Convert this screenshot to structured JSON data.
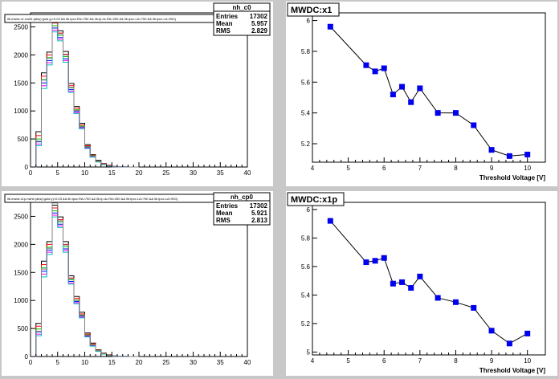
{
  "chart_data": [
    {
      "type": "histogram",
      "title": "",
      "selection": "llb.mwdc.x1.nwhit {abs(l.gold.y)<0.03 && llb.tpcc.RA>750 && llb.tp.dc.RA>250 && llb.tpcc.LA>750 && llb.tpcc.LA>900}",
      "stats": {
        "name": "nh_c0",
        "entries_label": "Entries",
        "entries": "17302",
        "mean_label": "Mean",
        "mean": "5.957",
        "rms_label": "RMS",
        "rms": "2.829"
      },
      "xlim": [
        0,
        40
      ],
      "ylim": [
        0,
        2750
      ],
      "xticks": [
        0,
        5,
        10,
        15,
        20,
        25,
        30,
        35,
        40
      ],
      "yticks": [
        0,
        500,
        1000,
        1500,
        2000,
        2500
      ],
      "bin_width": 1,
      "series": [
        {
          "color": "#000000",
          "values": [
            0,
            630,
            1680,
            2050,
            2620,
            2430,
            2060,
            1490,
            1080,
            780,
            400,
            220,
            120,
            60,
            30,
            10,
            4,
            2,
            0,
            0
          ]
        },
        {
          "color": "#ff0000",
          "values": [
            0,
            560,
            1620,
            2000,
            2570,
            2390,
            2010,
            1450,
            1050,
            750,
            380,
            210,
            110,
            55,
            25,
            8,
            3,
            1,
            0,
            0
          ]
        },
        {
          "color": "#00c000",
          "values": [
            0,
            500,
            1560,
            1950,
            2520,
            2350,
            1970,
            1410,
            1020,
            730,
            365,
            200,
            105,
            50,
            22,
            7,
            3,
            1,
            0,
            0
          ]
        },
        {
          "color": "#0000ff",
          "values": [
            0,
            450,
            1500,
            1900,
            2480,
            2310,
            1930,
            1380,
            990,
            710,
            350,
            190,
            100,
            48,
            20,
            6,
            2,
            1,
            0,
            0
          ]
        },
        {
          "color": "#ff00ff",
          "values": [
            0,
            410,
            1450,
            1860,
            2440,
            2280,
            1900,
            1350,
            970,
            690,
            340,
            180,
            95,
            45,
            18,
            5,
            2,
            1,
            0,
            0
          ]
        },
        {
          "color": "#00c0c0",
          "values": [
            0,
            380,
            1400,
            1820,
            2410,
            2250,
            1870,
            1330,
            950,
            680,
            330,
            175,
            90,
            42,
            16,
            5,
            2,
            1,
            0,
            0
          ]
        },
        {
          "color": "#808080",
          "values": [
            0,
            460,
            1550,
            1940,
            2700,
            2380,
            2000,
            1420,
            1010,
            720,
            360,
            195,
            102,
            49,
            21,
            6,
            2,
            1,
            0,
            0
          ]
        }
      ]
    },
    {
      "type": "scatter",
      "title": "MWDC:x1",
      "xlabel": "Threshold Voltage [V]",
      "xlim": [
        4,
        10.5
      ],
      "ylim": [
        5.08,
        6.05
      ],
      "xticks": [
        4,
        5,
        6,
        7,
        8,
        9,
        10
      ],
      "yticks": [
        5.2,
        5.4,
        5.6,
        5.8,
        6
      ],
      "x": [
        4.5,
        5.5,
        5.75,
        6.0,
        6.25,
        6.5,
        6.75,
        7.0,
        7.5,
        8.0,
        8.5,
        9.0,
        9.5,
        10.0
      ],
      "y": [
        5.96,
        5.71,
        5.67,
        5.69,
        5.52,
        5.57,
        5.47,
        5.56,
        5.4,
        5.4,
        5.32,
        5.16,
        5.12,
        5.13
      ]
    },
    {
      "type": "histogram",
      "title": "",
      "selection": "llb.mwdc.x1p.nwhit {abs(l.gold.y)<0.03 && llb.tpcc.RA>750 && llb.tp.dc.RA>250 && llb.tpcc.LA>750 && llb.tpcc.LA>900}",
      "stats": {
        "name": "nh_cp0",
        "entries_label": "Entries",
        "entries": "17302",
        "mean_label": "Mean",
        "mean": "5.921",
        "rms_label": "RMS",
        "rms": "2.813"
      },
      "xlim": [
        0,
        40
      ],
      "ylim": [
        0,
        2750
      ],
      "xticks": [
        0,
        5,
        10,
        15,
        20,
        25,
        30,
        35,
        40
      ],
      "yticks": [
        0,
        500,
        1000,
        1500,
        2000,
        2500
      ],
      "bin_width": 1,
      "series": [
        {
          "color": "#000000",
          "values": [
            0,
            590,
            1700,
            2050,
            2700,
            2490,
            2050,
            1440,
            1070,
            790,
            420,
            240,
            120,
            60,
            30,
            10,
            4,
            2,
            0,
            0
          ]
        },
        {
          "color": "#ff0000",
          "values": [
            0,
            540,
            1640,
            2000,
            2650,
            2440,
            2000,
            1400,
            1040,
            760,
            400,
            225,
            112,
            56,
            26,
            8,
            3,
            1,
            0,
            0
          ]
        },
        {
          "color": "#00c000",
          "values": [
            0,
            490,
            1580,
            1950,
            2600,
            2400,
            1960,
            1370,
            1010,
            740,
            385,
            210,
            106,
            52,
            23,
            7,
            3,
            1,
            0,
            0
          ]
        },
        {
          "color": "#0000ff",
          "values": [
            0,
            440,
            1520,
            1900,
            2560,
            2360,
            1920,
            1340,
            980,
            720,
            370,
            200,
            100,
            49,
            20,
            6,
            2,
            1,
            0,
            0
          ]
        },
        {
          "color": "#ff00ff",
          "values": [
            0,
            400,
            1470,
            1860,
            2520,
            2330,
            1890,
            1310,
            960,
            700,
            360,
            190,
            95,
            46,
            18,
            5,
            2,
            1,
            0,
            0
          ]
        },
        {
          "color": "#00c0c0",
          "values": [
            0,
            370,
            1420,
            1820,
            2490,
            2300,
            1860,
            1290,
            940,
            690,
            350,
            185,
            92,
            43,
            17,
            5,
            2,
            1,
            0,
            0
          ]
        },
        {
          "color": "#808080",
          "values": [
            0,
            450,
            1560,
            1930,
            2740,
            2420,
            1990,
            1390,
            1000,
            730,
            380,
            205,
            104,
            50,
            21,
            6,
            2,
            1,
            0,
            0
          ]
        }
      ]
    },
    {
      "type": "scatter",
      "title": "MWDC:x1p",
      "xlabel": "Threshold Voltage [V]",
      "xlim": [
        4,
        10.5
      ],
      "ylim": [
        4.98,
        6.05
      ],
      "xticks": [
        4,
        5,
        6,
        7,
        8,
        9,
        10
      ],
      "yticks": [
        5,
        5.2,
        5.4,
        5.6,
        5.8,
        6
      ],
      "x": [
        4.5,
        5.5,
        5.75,
        6.0,
        6.25,
        6.5,
        6.75,
        7.0,
        7.5,
        8.0,
        8.5,
        9.0,
        9.5,
        10.0
      ],
      "y": [
        5.92,
        5.63,
        5.64,
        5.66,
        5.48,
        5.49,
        5.45,
        5.53,
        5.38,
        5.35,
        5.31,
        5.15,
        5.06,
        5.13
      ]
    }
  ]
}
